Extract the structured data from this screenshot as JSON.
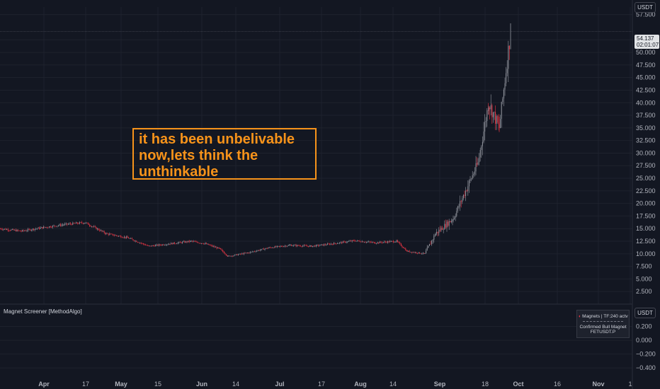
{
  "currency": "USDT",
  "annotation": {
    "lines": [
      "it has been unbelivable",
      "now,lets think the",
      "unthinkable"
    ]
  },
  "last_price": {
    "value": "54.137",
    "countdown": "02:01:07"
  },
  "indicator": {
    "title": "Magnet Screener [MethodAlgo]",
    "panel_header": "Magnets | TF:240 actv",
    "status_line1": "Confirmed Bull Magnet",
    "status_line2": "FETUSDT.P"
  },
  "colors": {
    "background": "#131722",
    "up": "#9598a1",
    "down": "#f23645",
    "annotation": "#f7931a",
    "grid": "#1e222d"
  },
  "chart_data": [
    {
      "type": "candlestick",
      "title": "",
      "y_axis_side": "right",
      "ylim": [
        0,
        59000
      ],
      "y_ticks": [
        2500,
        5000,
        7500,
        10000,
        12500,
        15000,
        17500,
        20000,
        22500,
        25000,
        27500,
        30000,
        32500,
        35000,
        37500,
        40000,
        42500,
        45000,
        47500,
        50000,
        52500,
        57500
      ],
      "y_tick_labels": [
        "2.500",
        "5.000",
        "7.500",
        "10.000",
        "12.500",
        "15.000",
        "17.500",
        "20.000",
        "22.500",
        "25.000",
        "27.500",
        "30.000",
        "32.500",
        "35.000",
        "37.500",
        "40.000",
        "42.500",
        "45.000",
        "47.500",
        "50.000",
        "52.500",
        "57.500"
      ],
      "x_tick_labels": [
        "Apr",
        "17",
        "May",
        "15",
        "Jun",
        "14",
        "Jul",
        "17",
        "Aug",
        "14",
        "Sep",
        "18",
        "Oct",
        "16",
        "Nov",
        "1"
      ],
      "x_tick_month": [
        true,
        false,
        true,
        false,
        true,
        false,
        true,
        false,
        true,
        false,
        true,
        false,
        true,
        false,
        true,
        false
      ],
      "series": [
        {
          "x": [
            "Mar 25",
            "Apr 1",
            "Apr 8",
            "Apr 15",
            "Apr 22",
            "Apr 29",
            "May 6",
            "May 13",
            "May 20",
            "May 27",
            "Jun 3",
            "Jun 10",
            "Jun 17",
            "Jun 24",
            "Jul 1",
            "Jul 8",
            "Jul 15",
            "Jul 22",
            "Jul 29",
            "Aug 5",
            "Aug 12",
            "Aug 19",
            "Aug 26",
            "Sep 2",
            "Sep 9",
            "Sep 16",
            "Sep 23",
            "Sep 26",
            "Sep 28"
          ],
          "close": [
            15000,
            14500,
            15200,
            15800,
            16200,
            14000,
            13200,
            11500,
            12000,
            12500,
            12000,
            11000,
            9500,
            10200,
            11200,
            11700,
            11500,
            12000,
            12600,
            12200,
            12500,
            10500,
            10000,
            14000,
            17000,
            28000,
            40000,
            35000,
            54137
          ]
        }
      ],
      "last_price_line": 54137
    },
    {
      "type": "line",
      "title": "Magnet Screener [MethodAlgo]",
      "ylim": [
        -0.48,
        0.34
      ],
      "y_ticks": [
        -0.4,
        -0.2,
        0,
        0.2
      ],
      "y_tick_labels": [
        "−0.400",
        "−0.200",
        "0.000",
        "0.200"
      ]
    }
  ]
}
